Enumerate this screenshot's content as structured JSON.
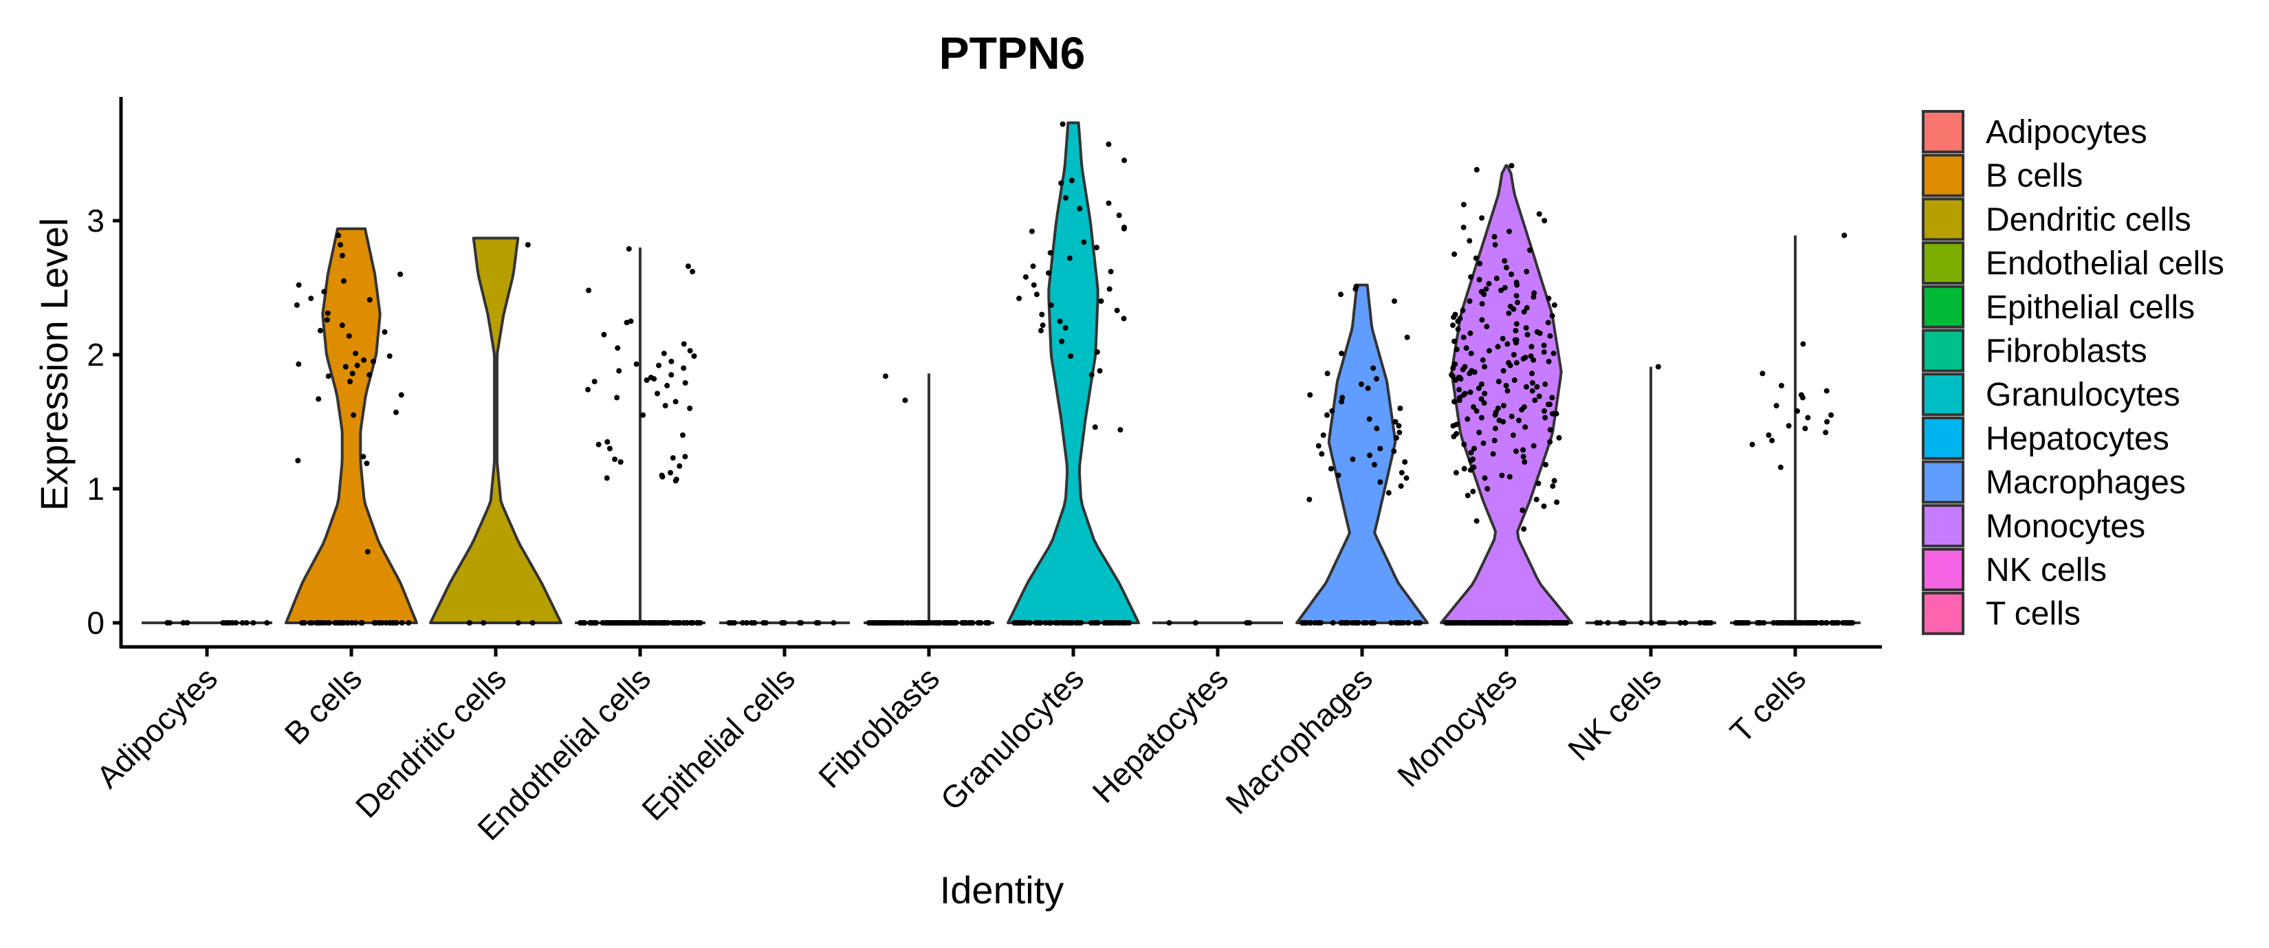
{
  "chart_data": {
    "type": "violin",
    "title": "PTPN6",
    "xlabel": "Identity",
    "ylabel": "Expression Level",
    "ylim": [
      -0.18,
      3.92
    ],
    "yticks": [
      0,
      1,
      2,
      3
    ],
    "ytick_labels": [
      "0",
      "1",
      "2",
      "3"
    ],
    "grid": false,
    "legend_position": "right",
    "categories": [
      "Adipocytes",
      "B cells",
      "Dendritic cells",
      "Endothelial cells",
      "Epithelial cells",
      "Fibroblasts",
      "Granulocytes",
      "Hepatocytes",
      "Macrophages",
      "Monocytes",
      "NK cells",
      "T cells"
    ],
    "colors": [
      "#F8766D",
      "#DE8C00",
      "#B79F00",
      "#7CAE00",
      "#00BA38",
      "#00C08B",
      "#00BFC4",
      "#00B4F0",
      "#619CFF",
      "#C77CFF",
      "#F564E3",
      "#FF64B0"
    ],
    "series": [
      {
        "name": "Adipocytes",
        "max": 0,
        "density": [],
        "zero_count": 14,
        "values": []
      },
      {
        "name": "B cells",
        "max": 2.94,
        "zero_count": 40,
        "density": [
          [
            0,
            1.0
          ],
          [
            0.3,
            0.75
          ],
          [
            0.6,
            0.42
          ],
          [
            0.9,
            0.2
          ],
          [
            1.2,
            0.14
          ],
          [
            1.43,
            0.14
          ],
          [
            1.7,
            0.22
          ],
          [
            2.0,
            0.38
          ],
          [
            2.3,
            0.44
          ],
          [
            2.6,
            0.36
          ],
          [
            2.94,
            0.21
          ]
        ],
        "values": [
          2.89,
          2.82,
          2.74,
          2.6,
          2.55,
          2.52,
          2.47,
          2.42,
          2.41,
          2.37,
          2.31,
          2.26,
          2.22,
          2.18,
          2.17,
          2.14,
          2.01,
          1.99,
          1.96,
          1.95,
          1.93,
          1.92,
          1.91,
          1.86,
          1.85,
          1.84,
          1.8,
          1.7,
          1.67,
          1.55,
          1.57,
          1.24,
          1.21,
          1.19,
          0.53
        ]
      },
      {
        "name": "Dendritic cells",
        "max": 2.87,
        "zero_count": 4,
        "density": [
          [
            0,
            1.0
          ],
          [
            0.3,
            0.7
          ],
          [
            0.6,
            0.35
          ],
          [
            0.9,
            0.08
          ],
          [
            1.2,
            0.02
          ],
          [
            2.0,
            0.02
          ],
          [
            2.3,
            0.12
          ],
          [
            2.6,
            0.27
          ],
          [
            2.87,
            0.34
          ]
        ],
        "values": [
          2.82
        ]
      },
      {
        "name": "Endothelial cells",
        "max": 2.8,
        "zero_count": 120,
        "density": [
          [
            0,
            0
          ],
          [
            2.8,
            0
          ]
        ],
        "values": [
          2.79,
          2.66,
          2.62,
          2.48,
          2.25,
          2.24,
          2.15,
          2.08,
          2.05,
          2.03,
          2.01,
          1.99,
          1.95,
          1.93,
          1.92,
          1.9,
          1.88,
          1.85,
          1.83,
          1.82,
          1.81,
          1.8,
          1.79,
          1.77,
          1.74,
          1.71,
          1.68,
          1.65,
          1.62,
          1.6,
          1.55,
          1.4,
          1.35,
          1.33,
          1.3,
          1.24,
          1.23,
          1.22,
          1.2,
          1.17,
          1.12,
          1.1,
          1.09,
          1.08,
          1.07,
          1.06
        ]
      },
      {
        "name": "Epithelial cells",
        "max": 0,
        "density": [],
        "zero_count": 18,
        "values": []
      },
      {
        "name": "Fibroblasts",
        "max": 1.86,
        "zero_count": 90,
        "density": [
          [
            0,
            0
          ],
          [
            1.86,
            0
          ]
        ],
        "values": [
          1.84,
          1.66
        ]
      },
      {
        "name": "Granulocytes",
        "max": 3.73,
        "zero_count": 60,
        "density": [
          [
            0,
            1.0
          ],
          [
            0.3,
            0.7
          ],
          [
            0.6,
            0.33
          ],
          [
            0.9,
            0.12
          ],
          [
            1.15,
            0.09
          ],
          [
            1.5,
            0.18
          ],
          [
            2.0,
            0.34
          ],
          [
            2.47,
            0.38
          ],
          [
            3.0,
            0.26
          ],
          [
            3.4,
            0.13
          ],
          [
            3.73,
            0.08
          ]
        ],
        "values": [
          3.72,
          3.57,
          3.45,
          3.3,
          3.28,
          3.17,
          3.13,
          3.09,
          3.04,
          2.95,
          2.94,
          2.92,
          2.84,
          2.8,
          2.76,
          2.72,
          2.66,
          2.62,
          2.61,
          2.58,
          2.52,
          2.49,
          2.45,
          2.42,
          2.4,
          2.37,
          2.33,
          2.3,
          2.27,
          2.25,
          2.22,
          2.2,
          2.18,
          2.1,
          2.02,
          1.99,
          1.88,
          1.85,
          1.46,
          1.44
        ]
      },
      {
        "name": "Hepatocytes",
        "max": 0,
        "density": [],
        "zero_count": 4,
        "values": []
      },
      {
        "name": "Macrophages",
        "max": 2.52,
        "zero_count": 40,
        "density": [
          [
            0,
            1.0
          ],
          [
            0.3,
            0.55
          ],
          [
            0.67,
            0.19
          ],
          [
            0.9,
            0.3
          ],
          [
            1.35,
            0.51
          ],
          [
            1.8,
            0.38
          ],
          [
            2.2,
            0.15
          ],
          [
            2.52,
            0.08
          ]
        ],
        "values": [
          2.51,
          2.49,
          2.45,
          2.4,
          2.13,
          2.01,
          1.9,
          1.86,
          1.82,
          1.78,
          1.75,
          1.7,
          1.68,
          1.65,
          1.6,
          1.58,
          1.55,
          1.52,
          1.5,
          1.47,
          1.45,
          1.42,
          1.4,
          1.38,
          1.32,
          1.3,
          1.28,
          1.26,
          1.25,
          1.22,
          1.2,
          1.18,
          1.15,
          1.12,
          1.1,
          1.08,
          1.05,
          1.02,
          0.97,
          0.92
        ]
      },
      {
        "name": "Monocytes",
        "max": 3.41,
        "zero_count": 150,
        "density": [
          [
            0,
            1.0
          ],
          [
            0.3,
            0.5
          ],
          [
            0.66,
            0.15
          ],
          [
            0.9,
            0.35
          ],
          [
            1.4,
            0.7
          ],
          [
            1.87,
            0.84
          ],
          [
            2.3,
            0.7
          ],
          [
            2.8,
            0.38
          ],
          [
            3.2,
            0.12
          ],
          [
            3.41,
            0.05
          ]
        ],
        "values": [
          3.41,
          3.38,
          3.12,
          3.05,
          3.02,
          3.0,
          2.95,
          2.92,
          2.88,
          2.85,
          2.82,
          2.78,
          2.75,
          2.72,
          2.7,
          2.68,
          2.65,
          2.62,
          2.6,
          2.58,
          2.56,
          2.54,
          2.52,
          2.5,
          2.49,
          2.47,
          2.45,
          2.44,
          2.42,
          2.4,
          2.39,
          2.37,
          2.36,
          2.34,
          2.33,
          2.31,
          2.3,
          2.29,
          2.27,
          2.26,
          2.25,
          2.24,
          2.22,
          2.21,
          2.2,
          2.19,
          2.18,
          2.17,
          2.16,
          2.15,
          2.14,
          2.13,
          2.12,
          2.11,
          2.1,
          2.09,
          2.08,
          2.07,
          2.06,
          2.05,
          2.04,
          2.03,
          2.02,
          2.01,
          2.0,
          1.99,
          1.98,
          1.97,
          1.96,
          1.95,
          1.94,
          1.93,
          1.92,
          1.91,
          1.9,
          1.89,
          1.88,
          1.87,
          1.86,
          1.85,
          1.84,
          1.83,
          1.82,
          1.81,
          1.8,
          1.79,
          1.78,
          1.77,
          1.76,
          1.75,
          1.74,
          1.73,
          1.72,
          1.71,
          1.7,
          1.69,
          1.68,
          1.67,
          1.66,
          1.65,
          1.64,
          1.63,
          1.62,
          1.61,
          1.6,
          1.59,
          1.58,
          1.57,
          1.56,
          1.55,
          1.54,
          1.53,
          1.52,
          1.51,
          1.5,
          1.48,
          1.46,
          1.44,
          1.42,
          1.4,
          1.38,
          1.36,
          1.34,
          1.32,
          1.3,
          1.28,
          1.26,
          1.24,
          1.22,
          1.2,
          1.18,
          1.16,
          1.14,
          1.12,
          1.1,
          1.08,
          1.06,
          1.04,
          1.02,
          1.0,
          0.98,
          0.95,
          0.92,
          0.9,
          0.87,
          0.84,
          0.76,
          0.7,
          2.48,
          2.43,
          2.35,
          2.28,
          2.23,
          2.16,
          2.11,
          2.06,
          2.01,
          1.96,
          1.91,
          1.86,
          1.81,
          1.76,
          1.71,
          1.66,
          1.61,
          1.56,
          1.51,
          1.45,
          1.39,
          1.33,
          1.27,
          1.21,
          1.15,
          1.09,
          2.57,
          2.53,
          2.46,
          2.38,
          2.32,
          1.94,
          1.88,
          1.83,
          1.78,
          1.73,
          1.68,
          1.63,
          1.58,
          1.53,
          1.47,
          1.41,
          1.35,
          1.29
        ]
      },
      {
        "name": "NK cells",
        "max": 1.91,
        "zero_count": 20,
        "density": [
          [
            0,
            0
          ],
          [
            1.91,
            0
          ]
        ],
        "values": [
          1.91
        ]
      },
      {
        "name": "T cells",
        "max": 2.89,
        "zero_count": 80,
        "density": [
          [
            0,
            0
          ],
          [
            2.89,
            0
          ]
        ],
        "values": [
          2.89,
          2.08,
          1.86,
          1.77,
          1.73,
          1.7,
          1.68,
          1.62,
          1.58,
          1.55,
          1.53,
          1.5,
          1.47,
          1.45,
          1.42,
          1.4,
          1.36,
          1.33,
          1.16
        ]
      }
    ]
  }
}
